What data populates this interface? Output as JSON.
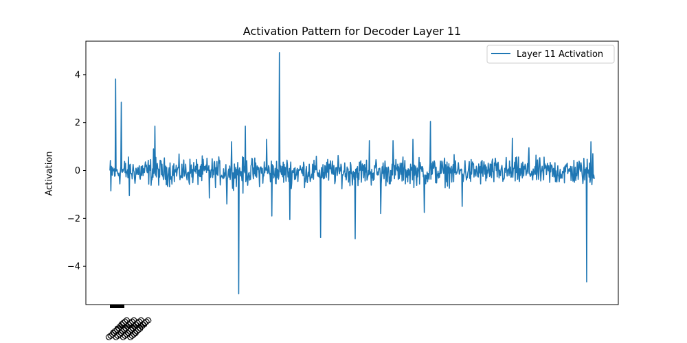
{
  "chart_data": {
    "type": "line",
    "title": "Activation Pattern for Decoder Layer 11",
    "xlabel": "",
    "ylabel": "Activation",
    "ylim": [
      -5.6,
      5.4
    ],
    "yticks": [
      -4,
      -2,
      0,
      2,
      4
    ],
    "ytick_labels": [
      "−4",
      "−2",
      "0",
      "2",
      "4"
    ],
    "x_ticks_note": "dense overlapping rotated tick labels crowded at the left end of the x-axis (illegible)",
    "grid": false,
    "legend_position": "top-right",
    "series": [
      {
        "name": "Layer 11 Activation",
        "color": "#1f77b4",
        "n_points": 1024,
        "spikes": [
          {
            "index": 2,
            "value": -0.85
          },
          {
            "index": 12,
            "value": 3.82
          },
          {
            "index": 24,
            "value": 2.85
          },
          {
            "index": 41,
            "value": -1.05
          },
          {
            "index": 92,
            "value": 0.9
          },
          {
            "index": 95,
            "value": 1.85
          },
          {
            "index": 210,
            "value": -1.15
          },
          {
            "index": 257,
            "value": 1.2
          },
          {
            "index": 247,
            "value": -1.4
          },
          {
            "index": 272,
            "value": -5.15
          },
          {
            "index": 281,
            "value": -0.95
          },
          {
            "index": 286,
            "value": 1.85
          },
          {
            "index": 331,
            "value": 1.3
          },
          {
            "index": 342,
            "value": -1.9
          },
          {
            "index": 358,
            "value": 4.92
          },
          {
            "index": 380,
            "value": -2.05
          },
          {
            "index": 445,
            "value": -2.8
          },
          {
            "index": 518,
            "value": -2.85
          },
          {
            "index": 548,
            "value": 1.25
          },
          {
            "index": 572,
            "value": -1.8
          },
          {
            "index": 598,
            "value": 1.25
          },
          {
            "index": 640,
            "value": 1.3
          },
          {
            "index": 664,
            "value": -1.75
          },
          {
            "index": 677,
            "value": 2.05
          },
          {
            "index": 744,
            "value": -1.5
          },
          {
            "index": 850,
            "value": 1.35
          },
          {
            "index": 885,
            "value": 0.95
          },
          {
            "index": 1007,
            "value": -4.65
          },
          {
            "index": 1016,
            "value": 1.2
          },
          {
            "index": 1020,
            "value": 0.7
          }
        ],
        "baseline_range": [
          -1.0,
          1.0
        ]
      }
    ]
  }
}
